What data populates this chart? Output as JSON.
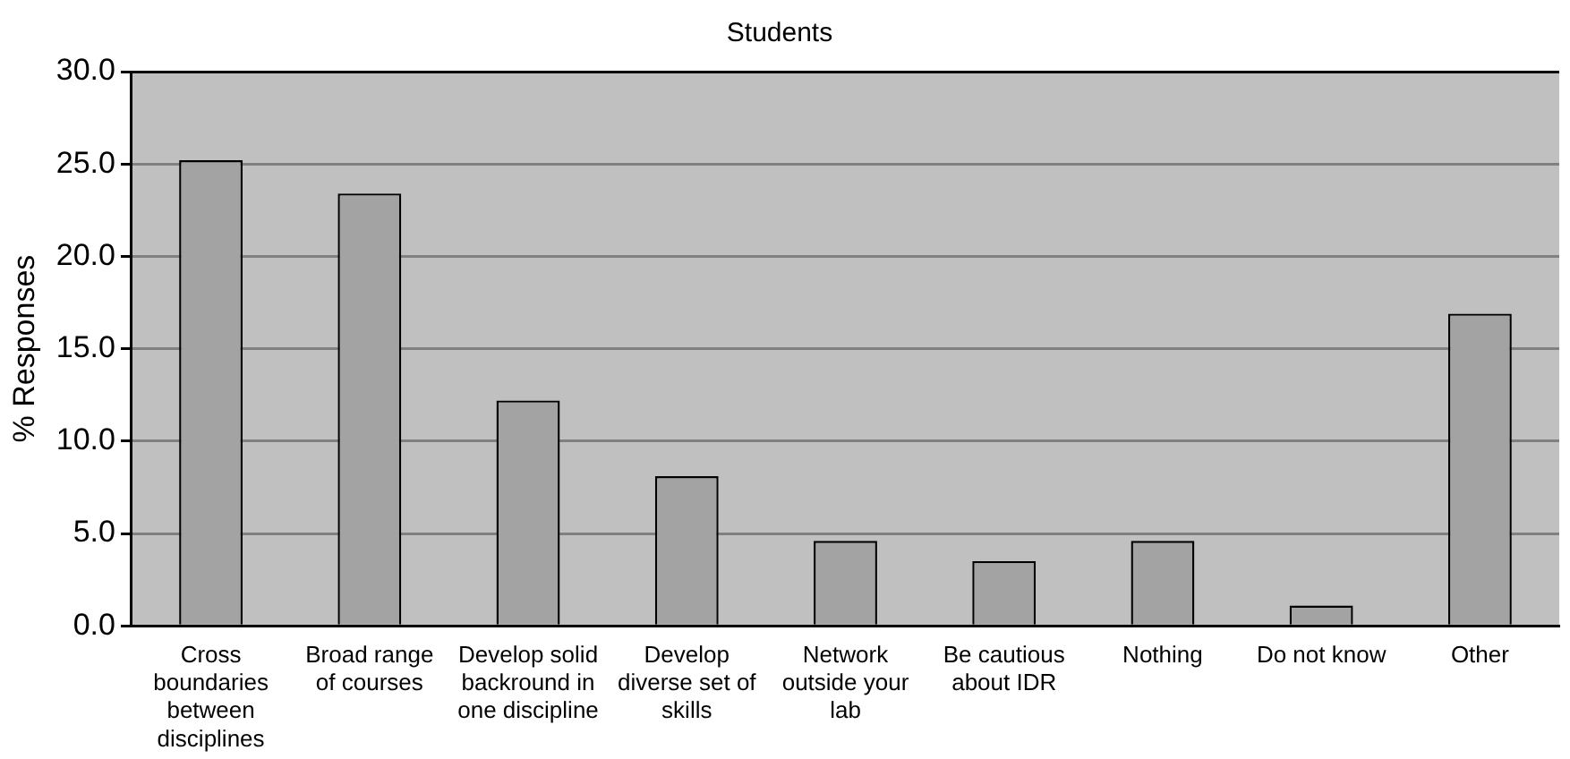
{
  "chart_data": {
    "type": "bar",
    "title": "Students",
    "ylabel": "% Responses",
    "categories": [
      "Cross boundaries between disciplines",
      "Broad range of courses",
      "Develop solid backround in one discipline",
      "Develop diverse set of skills",
      "Network outside your lab",
      "Be cautious about IDR",
      "Nothing",
      "Do not know",
      "Other"
    ],
    "values": [
      25.2,
      23.4,
      12.2,
      8.1,
      4.6,
      3.5,
      4.6,
      1.1,
      16.9
    ],
    "color": "#a3a3a3",
    "ylim": [
      0,
      30
    ],
    "yticks": [
      {
        "value": 0,
        "label": "0.0"
      },
      {
        "value": 5,
        "label": "5.0"
      },
      {
        "value": 10,
        "label": "10.0"
      },
      {
        "value": 15,
        "label": "15.0"
      },
      {
        "value": 20,
        "label": "20.0"
      },
      {
        "value": 25,
        "label": "25.0"
      },
      {
        "value": 30,
        "label": "30.0"
      }
    ],
    "grid": "y",
    "legend": false
  }
}
